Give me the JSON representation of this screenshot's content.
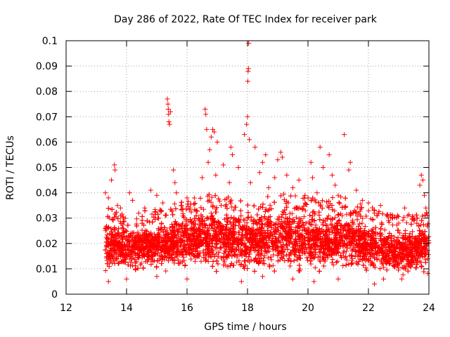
{
  "chart_data": {
    "type": "scatter",
    "title": "Day 286 of 2022, Rate Of TEC Index for receiver park",
    "xlabel": "GPS time / hours",
    "ylabel": "ROTI / TECUs",
    "xlim": [
      12,
      24
    ],
    "ylim": [
      0,
      0.1
    ],
    "x_ticks": [
      "12",
      "14",
      "16",
      "18",
      "20",
      "22",
      "24"
    ],
    "y_ticks": [
      "0",
      "0.01",
      "0.02",
      "0.03",
      "0.04",
      "0.05",
      "0.06",
      "0.07",
      "0.08",
      "0.09",
      "0.1"
    ],
    "grid": true,
    "legend": "none",
    "marker": "plus",
    "color": "#ff0000",
    "series": [
      {
        "points": [
          [
            13.3,
            0.04
          ],
          [
            13.4,
            0.038
          ],
          [
            13.5,
            0.045
          ],
          [
            13.6,
            0.051
          ],
          [
            13.62,
            0.049
          ],
          [
            13.7,
            0.035
          ],
          [
            13.8,
            0.034
          ],
          [
            13.9,
            0.03
          ],
          [
            14.1,
            0.04
          ],
          [
            14.2,
            0.037
          ],
          [
            14.4,
            0.032
          ],
          [
            14.6,
            0.034
          ],
          [
            14.8,
            0.041
          ],
          [
            15.0,
            0.039
          ],
          [
            15.2,
            0.036
          ],
          [
            15.35,
            0.077
          ],
          [
            15.37,
            0.075
          ],
          [
            15.38,
            0.073
          ],
          [
            15.39,
            0.071
          ],
          [
            15.4,
            0.068
          ],
          [
            15.42,
            0.067
          ],
          [
            15.45,
            0.072
          ],
          [
            15.55,
            0.049
          ],
          [
            15.6,
            0.044
          ],
          [
            15.65,
            0.04
          ],
          [
            15.8,
            0.035
          ],
          [
            16.0,
            0.038
          ],
          [
            16.1,
            0.034
          ],
          [
            16.3,
            0.033
          ],
          [
            16.5,
            0.046
          ],
          [
            16.6,
            0.073
          ],
          [
            16.62,
            0.071
          ],
          [
            16.65,
            0.065
          ],
          [
            16.7,
            0.052
          ],
          [
            16.75,
            0.057
          ],
          [
            16.8,
            0.062
          ],
          [
            16.85,
            0.065
          ],
          [
            16.9,
            0.064
          ],
          [
            16.95,
            0.047
          ],
          [
            17.0,
            0.06
          ],
          [
            17.2,
            0.051
          ],
          [
            17.4,
            0.044
          ],
          [
            17.45,
            0.058
          ],
          [
            17.5,
            0.055
          ],
          [
            17.7,
            0.05
          ],
          [
            17.9,
            0.063
          ],
          [
            17.97,
            0.067
          ],
          [
            18.0,
            0.07
          ],
          [
            18.01,
            0.084
          ],
          [
            18.02,
            0.088
          ],
          [
            18.03,
            0.089
          ],
          [
            18.04,
            0.099
          ],
          [
            18.06,
            0.061
          ],
          [
            18.1,
            0.044
          ],
          [
            18.25,
            0.058
          ],
          [
            18.4,
            0.048
          ],
          [
            18.5,
            0.052
          ],
          [
            18.6,
            0.055
          ],
          [
            18.7,
            0.042
          ],
          [
            18.9,
            0.046
          ],
          [
            19.0,
            0.053
          ],
          [
            19.1,
            0.056
          ],
          [
            19.15,
            0.054
          ],
          [
            19.3,
            0.047
          ],
          [
            19.5,
            0.042
          ],
          [
            19.7,
            0.045
          ],
          [
            19.9,
            0.039
          ],
          [
            20.1,
            0.052
          ],
          [
            20.15,
            0.046
          ],
          [
            20.3,
            0.04
          ],
          [
            20.4,
            0.058
          ],
          [
            20.5,
            0.05
          ],
          [
            20.7,
            0.055
          ],
          [
            20.8,
            0.047
          ],
          [
            20.9,
            0.043
          ],
          [
            21.0,
            0.039
          ],
          [
            21.2,
            0.063
          ],
          [
            21.35,
            0.049
          ],
          [
            21.4,
            0.052
          ],
          [
            21.6,
            0.041
          ],
          [
            21.8,
            0.037
          ],
          [
            22.0,
            0.036
          ],
          [
            22.2,
            0.032
          ],
          [
            22.4,
            0.035
          ],
          [
            22.6,
            0.031
          ],
          [
            22.8,
            0.03
          ],
          [
            23.0,
            0.028
          ],
          [
            23.2,
            0.034
          ],
          [
            23.3,
            0.031
          ],
          [
            23.5,
            0.029
          ],
          [
            23.7,
            0.043
          ],
          [
            23.75,
            0.047
          ],
          [
            23.8,
            0.045
          ],
          [
            23.85,
            0.039
          ],
          [
            23.9,
            0.034
          ],
          [
            23.95,
            0.031
          ],
          [
            22.2,
            0.004
          ],
          [
            22.5,
            0.006
          ],
          [
            17.8,
            0.005
          ],
          [
            18.5,
            0.007
          ],
          [
            19.5,
            0.006
          ],
          [
            21.0,
            0.006
          ],
          [
            13.4,
            0.005
          ],
          [
            14.0,
            0.006
          ],
          [
            15.0,
            0.007
          ],
          [
            16.0,
            0.006
          ],
          [
            20.2,
            0.005
          ],
          [
            23.1,
            0.006
          ]
        ]
      }
    ],
    "envelope": {
      "x": [
        13.3,
        13.5,
        14.0,
        14.5,
        15.0,
        15.5,
        16.0,
        16.5,
        17.0,
        17.5,
        18.0,
        18.5,
        19.0,
        19.5,
        20.0,
        20.5,
        21.0,
        21.5,
        22.0,
        22.5,
        23.0,
        23.5,
        24.0
      ],
      "upper": [
        0.029,
        0.028,
        0.026,
        0.027,
        0.028,
        0.03,
        0.031,
        0.033,
        0.034,
        0.033,
        0.032,
        0.033,
        0.034,
        0.033,
        0.032,
        0.032,
        0.033,
        0.031,
        0.029,
        0.027,
        0.025,
        0.026,
        0.027
      ],
      "lower": [
        0.008,
        0.007,
        0.007,
        0.007,
        0.008,
        0.008,
        0.008,
        0.008,
        0.008,
        0.007,
        0.007,
        0.007,
        0.007,
        0.007,
        0.007,
        0.007,
        0.007,
        0.007,
        0.006,
        0.006,
        0.006,
        0.006,
        0.006
      ],
      "n_points": 6200
    }
  }
}
